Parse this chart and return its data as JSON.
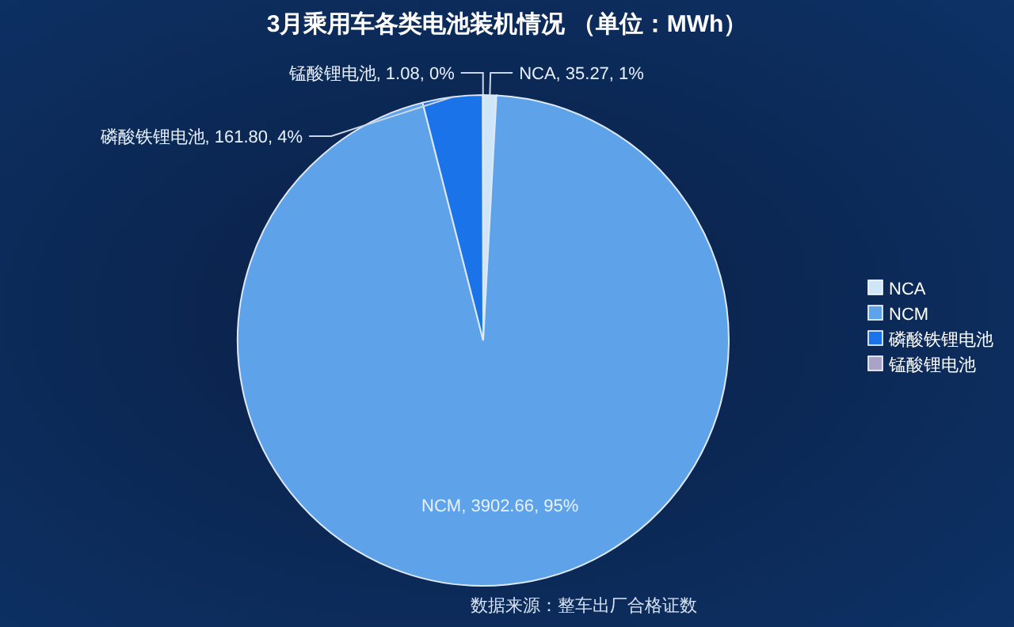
{
  "chart_data": {
    "type": "pie",
    "title": "3月乘用车各类电池装机情况 （单位：MWh）",
    "categories": [
      "NCA",
      "NCM",
      "磷酸铁锂电池",
      "锰酸锂电池"
    ],
    "values": [
      35.27,
      3902.66,
      161.8,
      1.08
    ],
    "value_labels": [
      "NCA, 35.27, 1%",
      "NCM, 3902.66, 95%",
      "磷酸铁锂电池, 161.80, 4%",
      "锰酸锂电池, 1.08, 0%"
    ],
    "colors": [
      "#cfe6f8",
      "#5ea3ea",
      "#1a73e8",
      "#a9a3c8"
    ],
    "legend": "right",
    "annotations": [
      "数据来源：整车出厂合格证数"
    ]
  }
}
